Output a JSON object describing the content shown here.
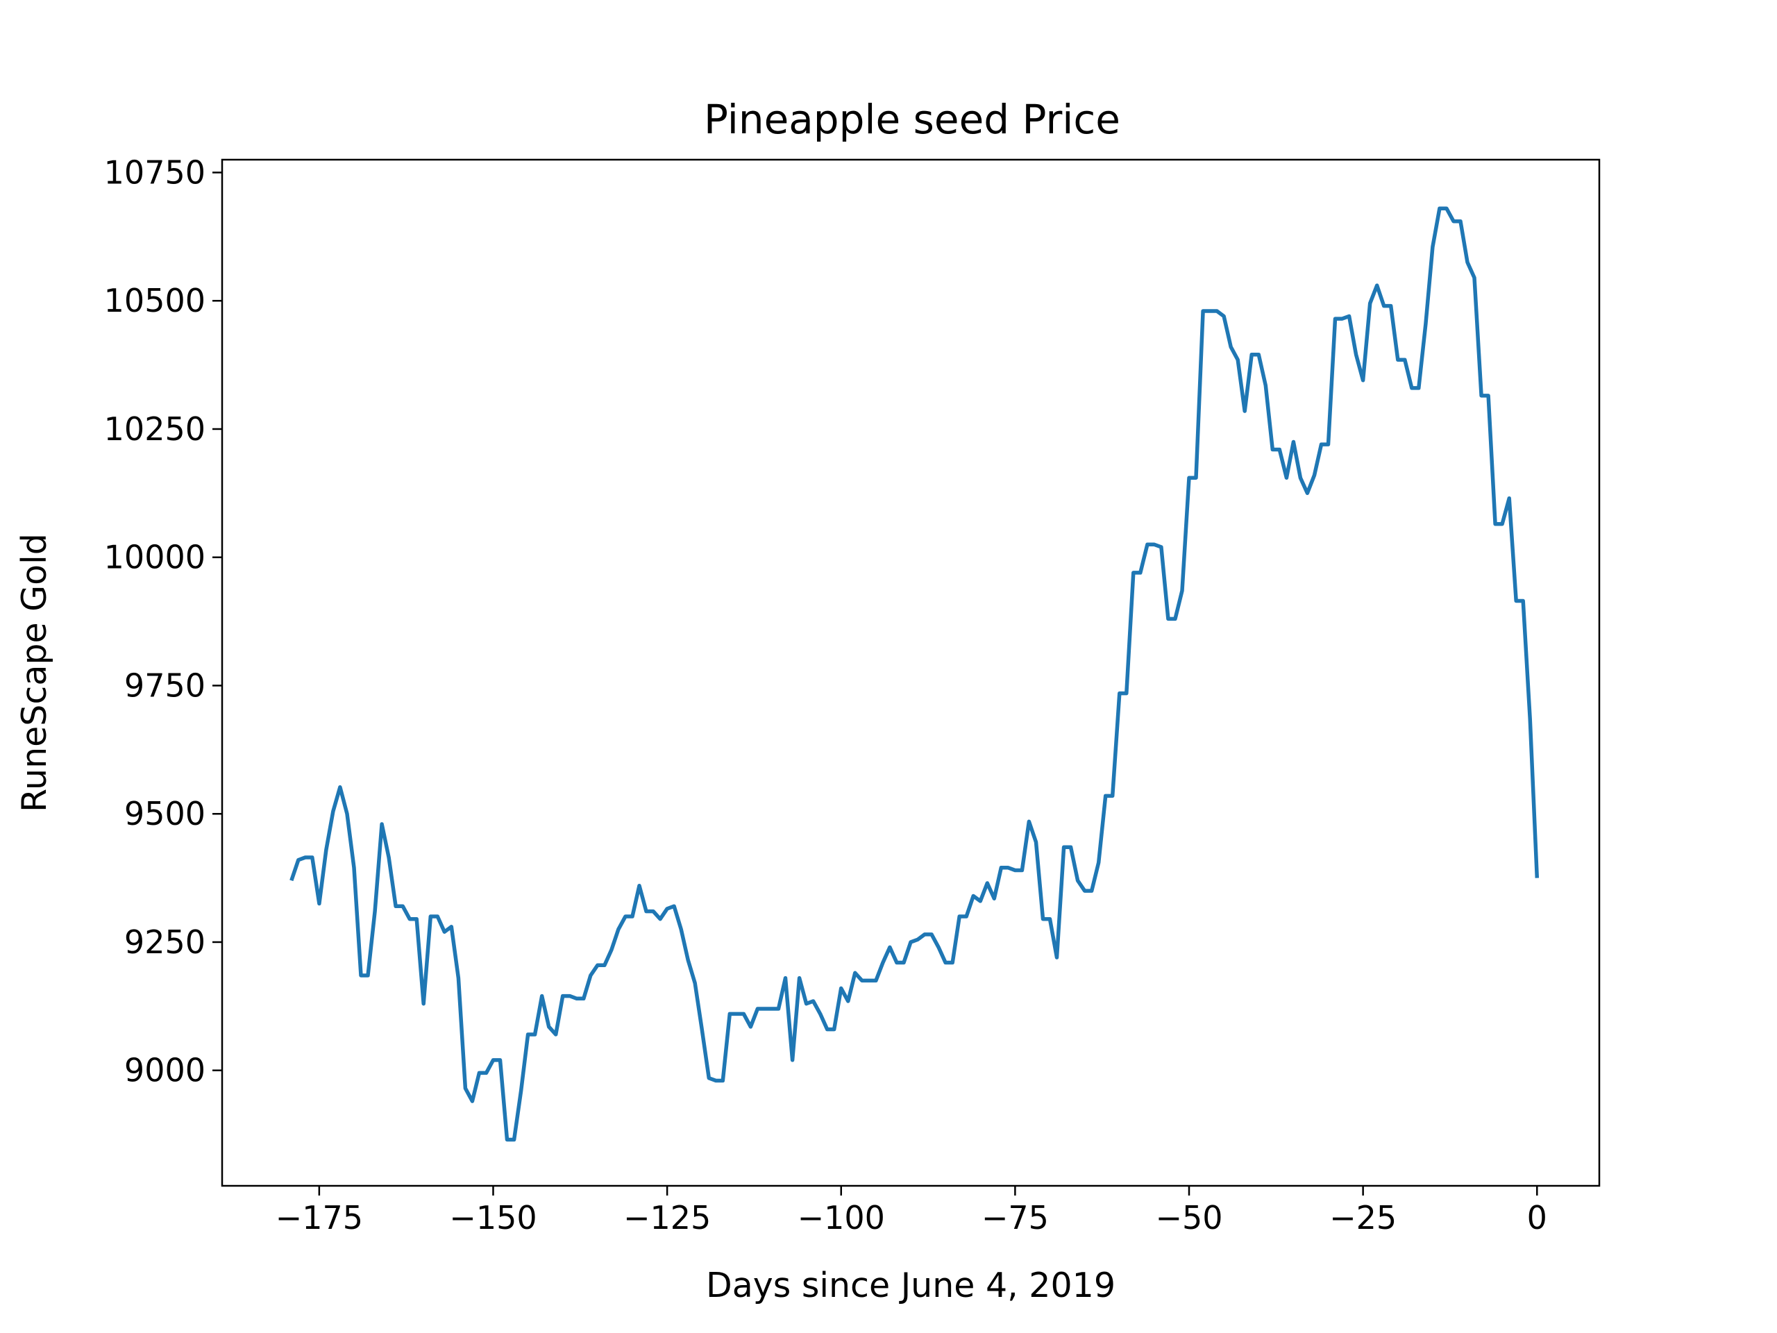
{
  "chart_data": {
    "type": "line",
    "title": "Pineapple seed Price",
    "xlabel": "Days since June 4, 2019",
    "ylabel": "RuneScape Gold",
    "xlim": [
      -188.95,
      8.95
    ],
    "ylim": [
      8775,
      10775
    ],
    "xticks": [
      -175,
      -150,
      -125,
      -100,
      -75,
      -50,
      -25,
      0
    ],
    "xtick_labels": [
      "−175",
      "−150",
      "−125",
      "−100",
      "−75",
      "−50",
      "−25",
      "0"
    ],
    "yticks": [
      9000,
      9250,
      9500,
      9750,
      10000,
      10250,
      10500,
      10750
    ],
    "ytick_labels": [
      "9000",
      "9250",
      "9500",
      "9750",
      "10000",
      "10250",
      "10500",
      "10750"
    ],
    "grid": false,
    "series": [
      {
        "color": "#1f77b4",
        "x": [
          -179,
          -178,
          -177,
          -176,
          -175,
          -174,
          -173,
          -172,
          -171,
          -170,
          -169,
          -168,
          -167,
          -166,
          -165,
          -164,
          -163,
          -162,
          -161,
          -160,
          -159,
          -158,
          -157,
          -156,
          -155,
          -154,
          -153,
          -152,
          -151,
          -150,
          -149,
          -148,
          -147,
          -146,
          -145,
          -144,
          -143,
          -142,
          -141,
          -140,
          -139,
          -138,
          -137,
          -136,
          -135,
          -134,
          -133,
          -132,
          -131,
          -130,
          -129,
          -128,
          -127,
          -126,
          -125,
          -124,
          -123,
          -122,
          -121,
          -120,
          -119,
          -118,
          -117,
          -116,
          -115,
          -114,
          -113,
          -112,
          -111,
          -110,
          -109,
          -108,
          -107,
          -106,
          -105,
          -104,
          -103,
          -102,
          -101,
          -100,
          -99,
          -98,
          -97,
          -96,
          -95,
          -94,
          -93,
          -92,
          -91,
          -90,
          -89,
          -88,
          -87,
          -86,
          -85,
          -84,
          -83,
          -82,
          -81,
          -80,
          -79,
          -78,
          -77,
          -76,
          -75,
          -74,
          -73,
          -72,
          -71,
          -70,
          -69,
          -68,
          -67,
          -66,
          -65,
          -64,
          -63,
          -62,
          -61,
          -60,
          -59,
          -58,
          -57,
          -56,
          -55,
          -54,
          -53,
          -52,
          -51,
          -50,
          -49,
          -48,
          -47,
          -46,
          -45,
          -44,
          -43,
          -42,
          -41,
          -40,
          -39,
          -38,
          -37,
          -36,
          -35,
          -34,
          -33,
          -32,
          -31,
          -30,
          -29,
          -28,
          -27,
          -26,
          -25,
          -24,
          -23,
          -22,
          -21,
          -20,
          -19,
          -18,
          -17,
          -16,
          -15,
          -14,
          -13,
          -12,
          -11,
          -10,
          -9,
          -8,
          -7,
          -6,
          -5,
          -4,
          -3,
          -2,
          -1,
          0
        ],
        "y": [
          9370,
          9410,
          9415,
          9415,
          9325,
          9430,
          9505,
          9552,
          9500,
          9395,
          9185,
          9185,
          9310,
          9480,
          9415,
          9320,
          9320,
          9295,
          9295,
          9130,
          9300,
          9300,
          9270,
          9280,
          9180,
          8965,
          8940,
          8995,
          8995,
          9020,
          9020,
          8865,
          8865,
          8960,
          9070,
          9070,
          9145,
          9085,
          9070,
          9145,
          9145,
          9140,
          9140,
          9185,
          9205,
          9205,
          9235,
          9275,
          9300,
          9300,
          9360,
          9310,
          9310,
          9295,
          9315,
          9320,
          9275,
          9215,
          9170,
          9080,
          8985,
          8980,
          8980,
          9110,
          9110,
          9110,
          9085,
          9120,
          9120,
          9120,
          9120,
          9180,
          9020,
          9180,
          9130,
          9135,
          9110,
          9080,
          9080,
          9160,
          9135,
          9190,
          9175,
          9175,
          9175,
          9210,
          9240,
          9210,
          9210,
          9250,
          9255,
          9265,
          9265,
          9240,
          9210,
          9210,
          9300,
          9300,
          9340,
          9330,
          9365,
          9335,
          9395,
          9395,
          9390,
          9390,
          9485,
          9445,
          9295,
          9295,
          9220,
          9435,
          9435,
          9370,
          9350,
          9350,
          9405,
          9535,
          9535,
          9735,
          9735,
          9970,
          9970,
          10025,
          10025,
          10020,
          9880,
          9880,
          9935,
          10155,
          10155,
          10480,
          10480,
          10480,
          10470,
          10410,
          10385,
          10285,
          10395,
          10395,
          10335,
          10210,
          10210,
          10155,
          10225,
          10155,
          10125,
          10160,
          10220,
          10220,
          10465,
          10465,
          10470,
          10395,
          10345,
          10495,
          10530,
          10490,
          10490,
          10385,
          10385,
          10330,
          10330,
          10455,
          10605,
          10680,
          10680,
          10655,
          10655,
          10575,
          10545,
          10315,
          10315,
          10065,
          10065,
          10115,
          9915,
          9915,
          9685,
          9375
        ]
      }
    ]
  }
}
